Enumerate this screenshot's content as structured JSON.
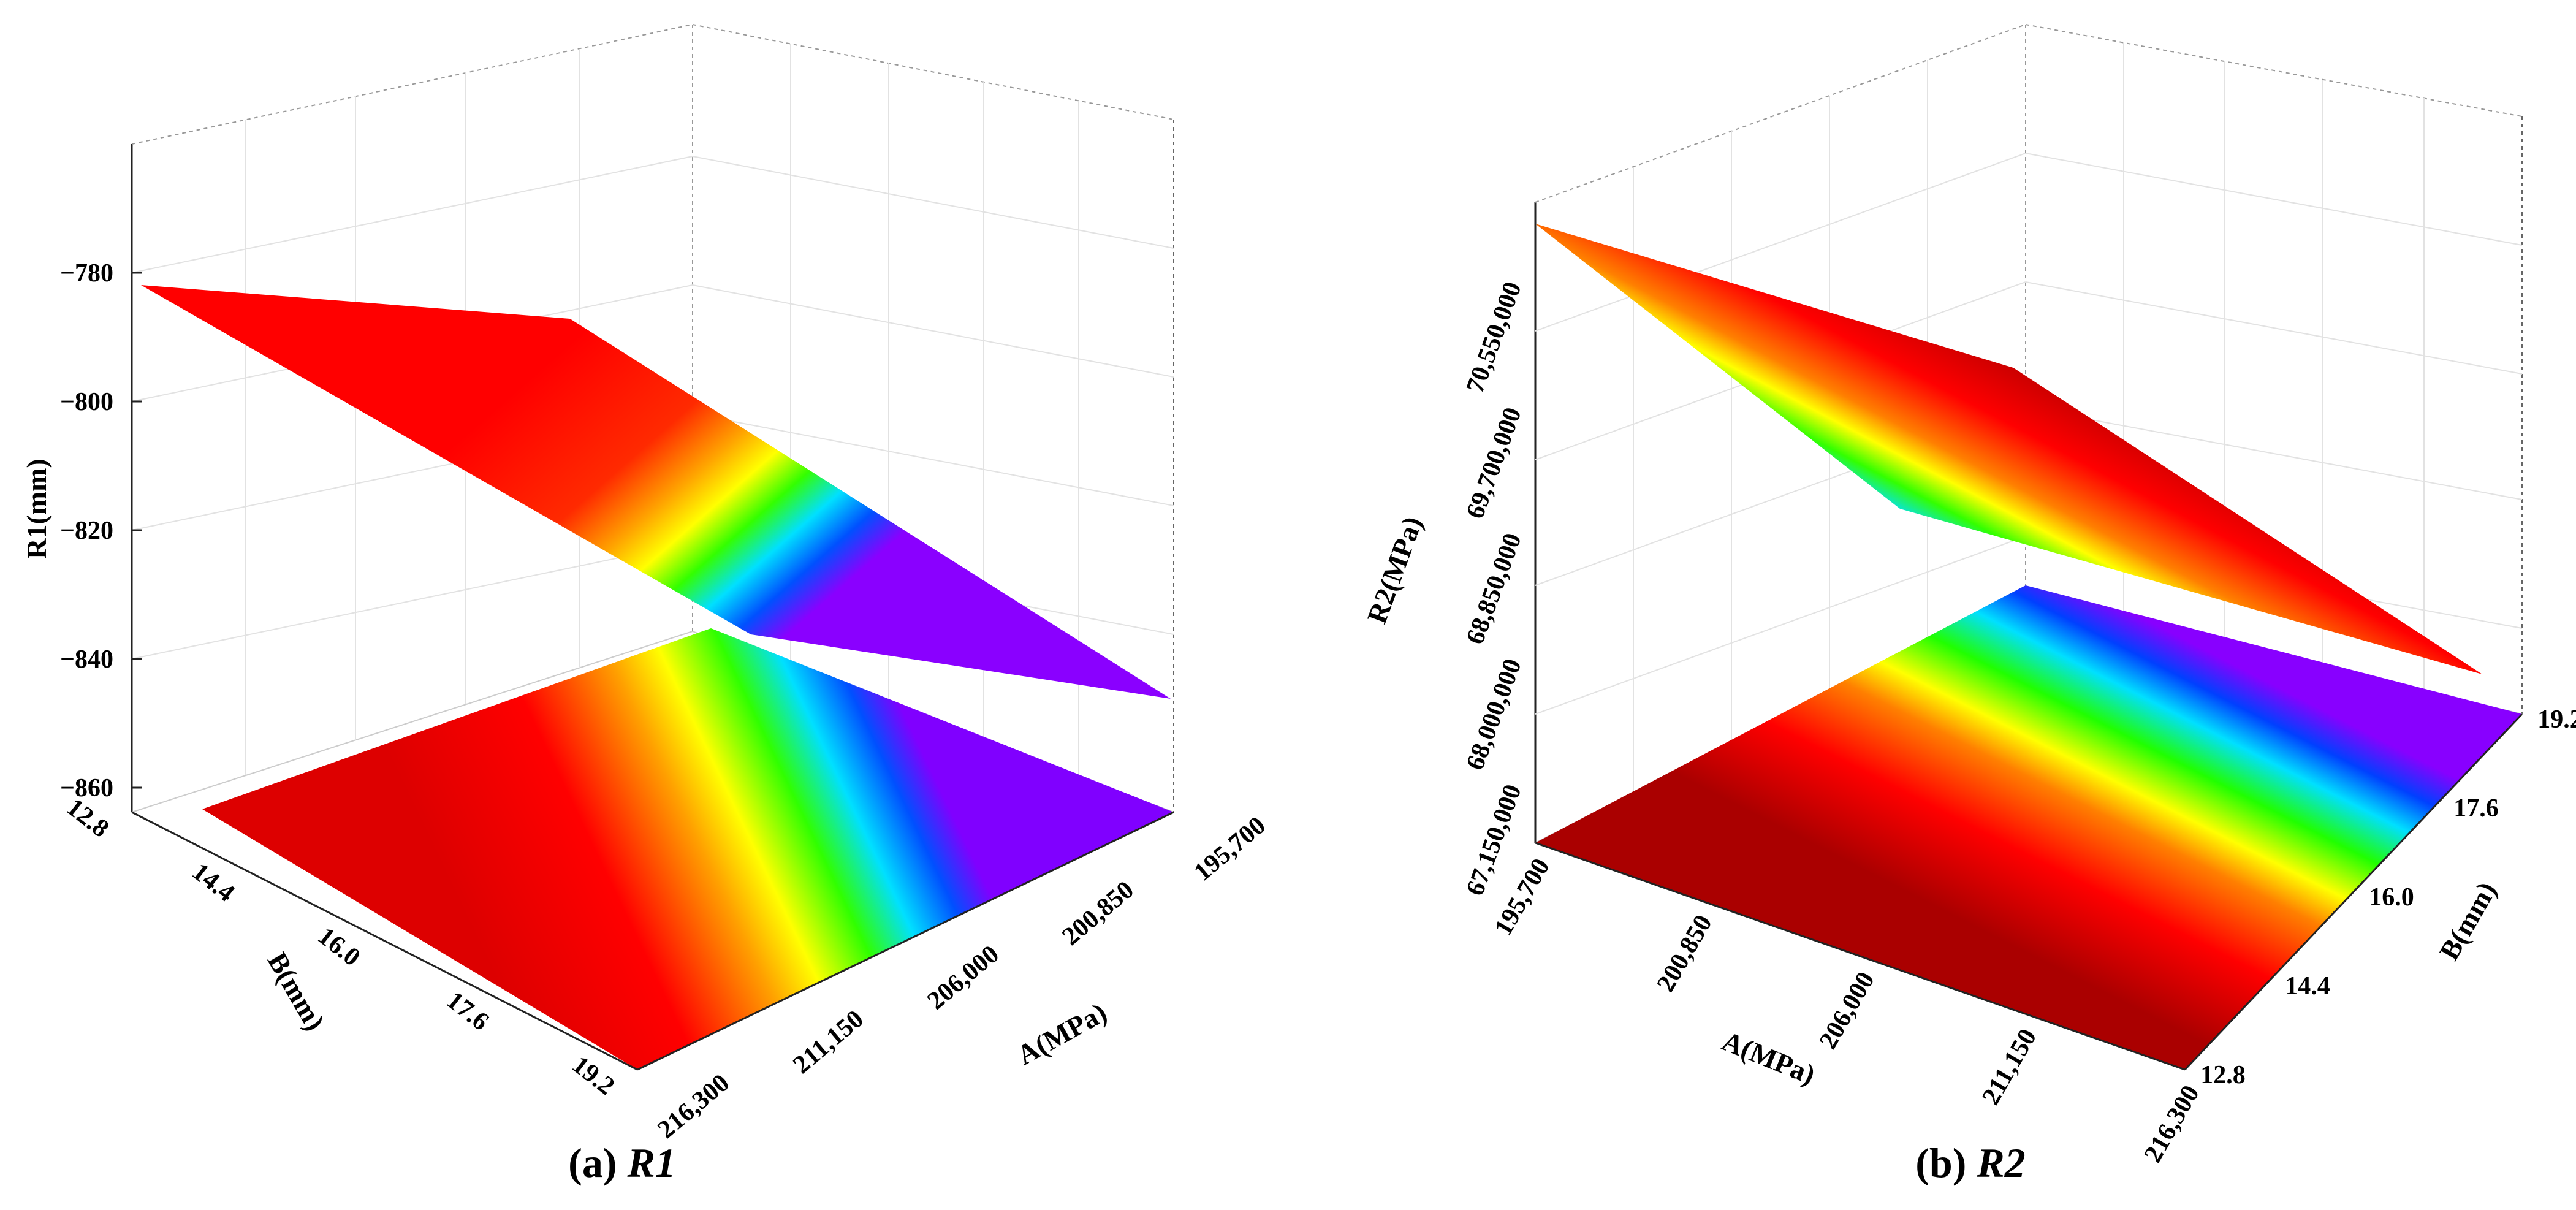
{
  "chart_data": [
    {
      "type": "surface3d",
      "caption": {
        "letter": "a",
        "symbol": "R1"
      },
      "z_label": "R1(mm)",
      "z_ticks": [
        "−780",
        "−800",
        "−820",
        "−840",
        "−860"
      ],
      "z_range": [
        -873,
        -762
      ],
      "x_label": "A(MPa)",
      "x_ticks": [
        "195,700",
        "200,850",
        "206,000",
        "211,150",
        "216,300"
      ],
      "x_range": [
        195700,
        216300
      ],
      "y_label": "B(mm)",
      "y_ticks": [
        "12.8",
        "14.4",
        "16.0",
        "17.6",
        "19.2"
      ],
      "y_range": [
        12.8,
        19.2
      ],
      "surface_corners": [
        {
          "A": 216300,
          "B": 12.8,
          "z": -785
        },
        {
          "A": 195700,
          "B": 12.8,
          "z": -790
        },
        {
          "A": 195700,
          "B": 19.2,
          "z": -849
        },
        {
          "A": 216300,
          "B": 19.2,
          "z": -850
        }
      ],
      "colormap": "rainbow",
      "floor_contour": true,
      "grid": true
    },
    {
      "type": "surface3d",
      "caption": {
        "letter": "b",
        "symbol": "R2"
      },
      "z_label": "R2(MPa)",
      "z_ticks": [
        "70,550,000",
        "69,700,000",
        "68,850,000",
        "68,000,000",
        "67,150,000"
      ],
      "z_range": [
        67150000,
        71200000
      ],
      "x_label": "A(MPa)",
      "x_ticks": [
        "195,700",
        "200,850",
        "206,000",
        "211,150",
        "216,300"
      ],
      "x_range": [
        195700,
        216300
      ],
      "y_label": "B(mm)",
      "y_ticks": [
        "19.2",
        "17.6",
        "16.0",
        "14.4",
        "12.8"
      ],
      "y_range": [
        12.8,
        19.2
      ],
      "surface_corners": [
        {
          "A": 195700,
          "B": 12.8,
          "z": 71150000
        },
        {
          "A": 195700,
          "B": 19.2,
          "z": 70200000
        },
        {
          "A": 216300,
          "B": 12.8,
          "z": 68800000
        },
        {
          "A": 216300,
          "B": 19.2,
          "z": 67900000
        }
      ],
      "colormap": "rainbow",
      "floor_contour": true,
      "grid": true
    }
  ]
}
